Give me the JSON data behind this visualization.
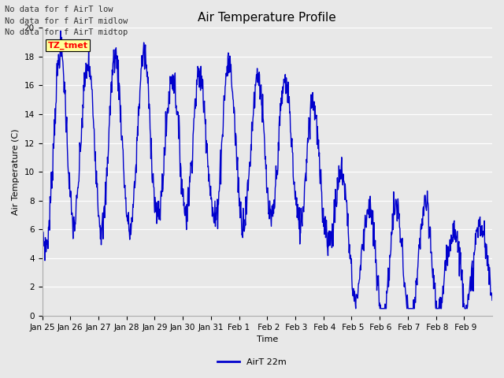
{
  "title": "Air Temperature Profile",
  "xlabel": "Time",
  "ylabel": "Air Temperature (C)",
  "ylim": [
    0,
    20
  ],
  "yticks": [
    0,
    2,
    4,
    6,
    8,
    10,
    12,
    14,
    16,
    18,
    20
  ],
  "line_color": "#0000cc",
  "line_width": 1.0,
  "legend_label": "AirT 22m",
  "background_color": "#e8e8e8",
  "plot_bg_color": "#e8e8e8",
  "no_data_texts": [
    "No data for f AirT low",
    "No data for f AirT midlow",
    "No data for f AirT midtop"
  ],
  "tz_label": "TZ_tmet",
  "xtick_labels": [
    "Jan 25",
    "Jan 26",
    "Jan 27",
    "Jan 28",
    "Jan 29",
    "Jan 30",
    "Jan 31",
    "Feb 1",
    " Feb 2",
    " Feb 3",
    " Feb 4",
    " Feb 5",
    " Feb 6",
    " Feb 7",
    " Feb 8",
    " Feb 9"
  ],
  "title_fontsize": 11,
  "axis_fontsize": 8,
  "tick_fontsize": 7.5
}
